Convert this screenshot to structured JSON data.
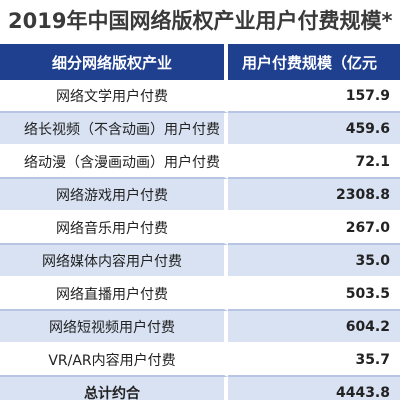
{
  "title": "2019年中国网络版权产业用户付费规模*",
  "table": {
    "headers": {
      "name": "细分网络版权产业",
      "value": "用户付费规模（亿元"
    },
    "rows": [
      {
        "name": "网络文学用户付费",
        "value": "157.9"
      },
      {
        "name": "络长视频（不含动画）用户付费",
        "value": "459.6"
      },
      {
        "name": "络动漫（含漫画动画）用户付费",
        "value": "72.1"
      },
      {
        "name": "网络游戏用户付费",
        "value": "2308.8"
      },
      {
        "name": "网络音乐用户付费",
        "value": "267.0"
      },
      {
        "name": "网络媒体内容用户付费",
        "value": "35.0"
      },
      {
        "name": "网络直播用户付费",
        "value": "503.5"
      },
      {
        "name": "网络短视频用户付费",
        "value": "604.2"
      },
      {
        "name": "VR/AR内容用户付费",
        "value": "35.7"
      },
      {
        "name": "总计约合",
        "value": "4443.8"
      }
    ]
  },
  "colors": {
    "header_bg": "#1f3f8f",
    "stripe_bg": "#d9e2f3",
    "title_text": "#3a3a3a"
  }
}
